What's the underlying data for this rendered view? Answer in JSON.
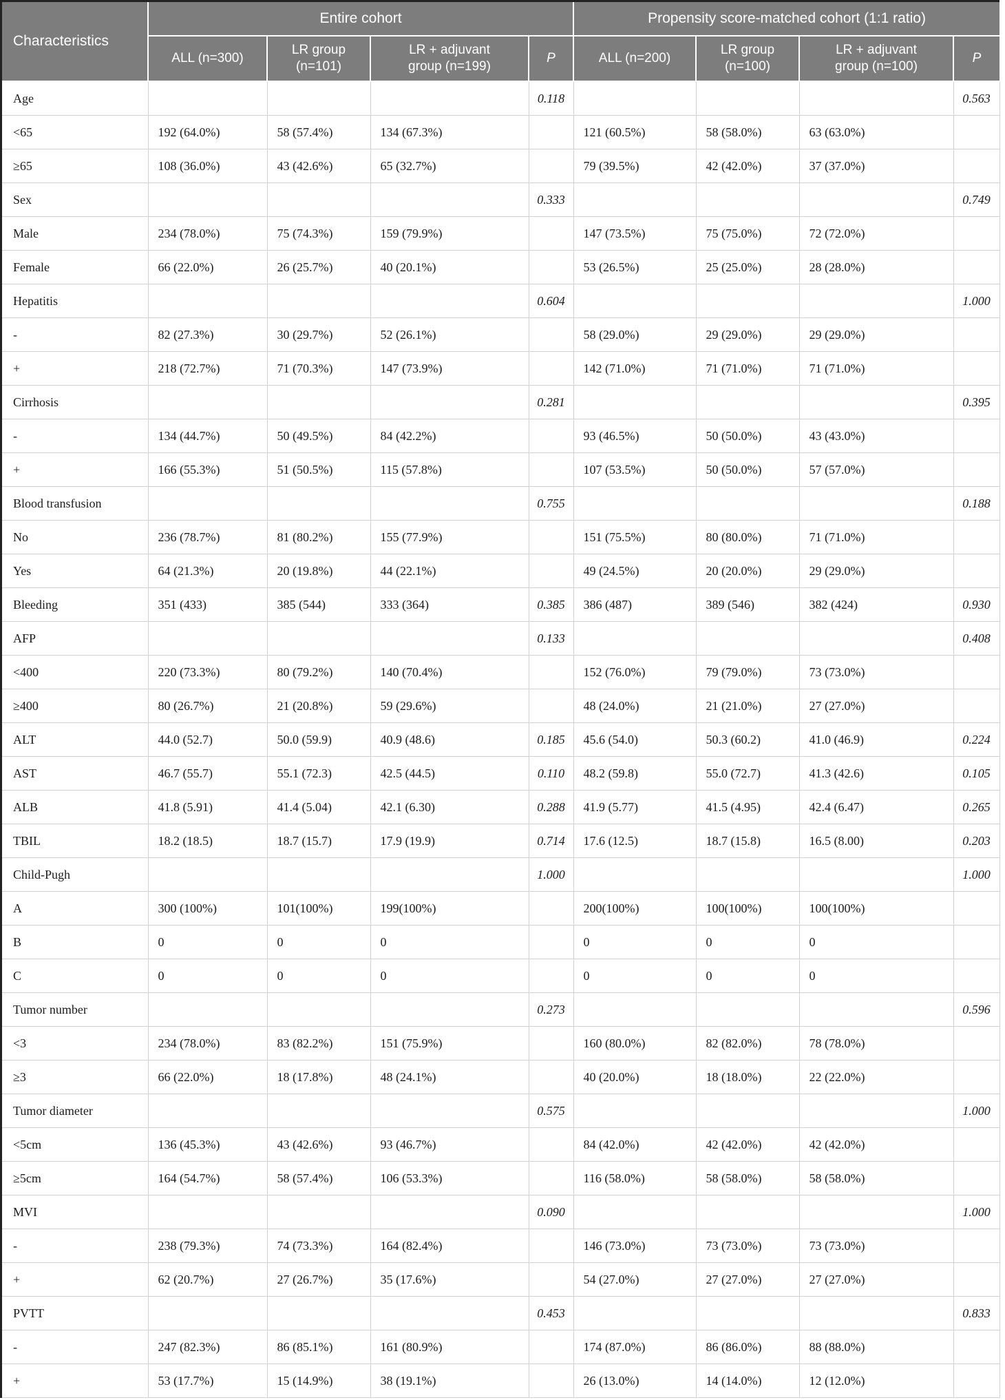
{
  "colors": {
    "header_bg": "#7d7d7d",
    "header_text": "#ffffff",
    "row_border": "#d2d2d2",
    "frame": "#222222",
    "body_text": "#1c1c1c"
  },
  "table": {
    "header": {
      "characteristics": "Characteristics",
      "groups": [
        {
          "label": "Entire cohort",
          "subcolumns": [
            "ALL (n=300)",
            "LR group\n(n=101)",
            "LR + adjuvant\ngroup (n=199)",
            "P"
          ]
        },
        {
          "label": "Propensity score-matched cohort (1:1 ratio)",
          "subcolumns": [
            "ALL (n=200)",
            "LR group\n(n=100)",
            "LR + adjuvant\ngroup (n=100)",
            "P"
          ]
        }
      ]
    },
    "rows": [
      {
        "label": "Age",
        "cells": [
          "",
          "",
          "",
          "0.118",
          "",
          "",
          "",
          "0.563"
        ]
      },
      {
        "label": "<65",
        "cells": [
          "192 (64.0%)",
          "58 (57.4%)",
          "134 (67.3%)",
          "",
          "121 (60.5%)",
          "58 (58.0%)",
          "63 (63.0%)",
          ""
        ]
      },
      {
        "label": "≥65",
        "cells": [
          "108 (36.0%)",
          "43 (42.6%)",
          "65 (32.7%)",
          "",
          "79 (39.5%)",
          "42 (42.0%)",
          "37 (37.0%)",
          ""
        ]
      },
      {
        "label": "Sex",
        "cells": [
          "",
          "",
          "",
          "0.333",
          "",
          "",
          "",
          "0.749"
        ]
      },
      {
        "label": "Male",
        "cells": [
          "234 (78.0%)",
          "75 (74.3%)",
          "159 (79.9%)",
          "",
          "147 (73.5%)",
          "75 (75.0%)",
          "72 (72.0%)",
          ""
        ]
      },
      {
        "label": "Female",
        "cells": [
          "66 (22.0%)",
          "26 (25.7%)",
          "40 (20.1%)",
          "",
          "53 (26.5%)",
          "25 (25.0%)",
          "28 (28.0%)",
          ""
        ]
      },
      {
        "label": "Hepatitis",
        "cells": [
          "",
          "",
          "",
          "0.604",
          "",
          "",
          "",
          "1.000"
        ]
      },
      {
        "label": "-",
        "cells": [
          "82 (27.3%)",
          "30 (29.7%)",
          "52 (26.1%)",
          "",
          "58 (29.0%)",
          "29 (29.0%)",
          "29 (29.0%)",
          ""
        ]
      },
      {
        "label": "+",
        "cells": [
          "218 (72.7%)",
          "71 (70.3%)",
          "147 (73.9%)",
          "",
          "142 (71.0%)",
          "71 (71.0%)",
          "71 (71.0%)",
          ""
        ]
      },
      {
        "label": "Cirrhosis",
        "cells": [
          "",
          "",
          "",
          "0.281",
          "",
          "",
          "",
          "0.395"
        ]
      },
      {
        "label": "-",
        "cells": [
          "134 (44.7%)",
          "50 (49.5%)",
          "84 (42.2%)",
          "",
          "93 (46.5%)",
          "50 (50.0%)",
          "43 (43.0%)",
          ""
        ]
      },
      {
        "label": "+",
        "cells": [
          "166 (55.3%)",
          "51 (50.5%)",
          "115 (57.8%)",
          "",
          "107 (53.5%)",
          "50 (50.0%)",
          "57 (57.0%)",
          ""
        ]
      },
      {
        "label": "Blood transfusion",
        "cells": [
          "",
          "",
          "",
          "0.755",
          "",
          "",
          "",
          "0.188"
        ]
      },
      {
        "label": "No",
        "cells": [
          "236 (78.7%)",
          "81 (80.2%)",
          "155 (77.9%)",
          "",
          "151 (75.5%)",
          "80 (80.0%)",
          "71 (71.0%)",
          ""
        ]
      },
      {
        "label": "Yes",
        "cells": [
          "64 (21.3%)",
          "20 (19.8%)",
          "44 (22.1%)",
          "",
          "49 (24.5%)",
          "20 (20.0%)",
          "29 (29.0%)",
          ""
        ]
      },
      {
        "label": "Bleeding",
        "cells": [
          "351 (433)",
          "385 (544)",
          "333 (364)",
          "0.385",
          "386 (487)",
          "389 (546)",
          "382 (424)",
          "0.930"
        ]
      },
      {
        "label": "AFP",
        "cells": [
          "",
          "",
          "",
          "0.133",
          "",
          "",
          "",
          "0.408"
        ]
      },
      {
        "label": "<400",
        "cells": [
          "220 (73.3%)",
          "80 (79.2%)",
          "140 (70.4%)",
          "",
          "152 (76.0%)",
          "79 (79.0%)",
          "73 (73.0%)",
          ""
        ]
      },
      {
        "label": "≥400",
        "cells": [
          "80 (26.7%)",
          "21 (20.8%)",
          "59 (29.6%)",
          "",
          "48 (24.0%)",
          "21 (21.0%)",
          "27 (27.0%)",
          ""
        ]
      },
      {
        "label": "ALT",
        "cells": [
          "44.0 (52.7)",
          "50.0 (59.9)",
          "40.9 (48.6)",
          "0.185",
          "45.6 (54.0)",
          "50.3 (60.2)",
          "41.0 (46.9)",
          "0.224"
        ]
      },
      {
        "label": "AST",
        "cells": [
          "46.7 (55.7)",
          "55.1 (72.3)",
          "42.5 (44.5)",
          "0.110",
          "48.2 (59.8)",
          "55.0 (72.7)",
          "41.3 (42.6)",
          "0.105"
        ]
      },
      {
        "label": "ALB",
        "cells": [
          "41.8 (5.91)",
          "41.4 (5.04)",
          "42.1 (6.30)",
          "0.288",
          "41.9 (5.77)",
          "41.5 (4.95)",
          "42.4 (6.47)",
          "0.265"
        ]
      },
      {
        "label": "TBIL",
        "cells": [
          "18.2 (18.5)",
          "18.7 (15.7)",
          "17.9 (19.9)",
          "0.714",
          "17.6 (12.5)",
          "18.7 (15.8)",
          "16.5 (8.00)",
          "0.203"
        ]
      },
      {
        "label": "Child-Pugh",
        "cells": [
          "",
          "",
          "",
          "1.000",
          "",
          "",
          "",
          "1.000"
        ]
      },
      {
        "label": "A",
        "cells": [
          "300 (100%)",
          "101(100%)",
          "199(100%)",
          "",
          "200(100%)",
          "100(100%)",
          "100(100%)",
          ""
        ]
      },
      {
        "label": "B",
        "cells": [
          "0",
          "0",
          "0",
          "",
          "0",
          "0",
          "0",
          ""
        ]
      },
      {
        "label": "C",
        "cells": [
          "0",
          "0",
          "0",
          "",
          "0",
          "0",
          "0",
          ""
        ]
      },
      {
        "label": "Tumor number",
        "cells": [
          "",
          "",
          "",
          "0.273",
          "",
          "",
          "",
          "0.596"
        ]
      },
      {
        "label": "<3",
        "cells": [
          "234 (78.0%)",
          "83 (82.2%)",
          "151 (75.9%)",
          "",
          "160 (80.0%)",
          "82 (82.0%)",
          "78 (78.0%)",
          ""
        ]
      },
      {
        "label": "≥3",
        "cells": [
          "66 (22.0%)",
          "18 (17.8%)",
          "48 (24.1%)",
          "",
          "40 (20.0%)",
          "18 (18.0%)",
          "22 (22.0%)",
          ""
        ]
      },
      {
        "label": "Tumor diameter",
        "cells": [
          "",
          "",
          "",
          "0.575",
          "",
          "",
          "",
          "1.000"
        ]
      },
      {
        "label": "<5cm",
        "cells": [
          "136 (45.3%)",
          "43 (42.6%)",
          "93 (46.7%)",
          "",
          "84 (42.0%)",
          "42 (42.0%)",
          "42 (42.0%)",
          ""
        ]
      },
      {
        "label": "≥5cm",
        "cells": [
          "164 (54.7%)",
          "58 (57.4%)",
          "106 (53.3%)",
          "",
          "116 (58.0%)",
          "58 (58.0%)",
          "58 (58.0%)",
          ""
        ]
      },
      {
        "label": "MVI",
        "cells": [
          "",
          "",
          "",
          "0.090",
          "",
          "",
          "",
          "1.000"
        ]
      },
      {
        "label": "-",
        "cells": [
          "238 (79.3%)",
          "74 (73.3%)",
          "164 (82.4%)",
          "",
          "146 (73.0%)",
          "73 (73.0%)",
          "73 (73.0%)",
          ""
        ]
      },
      {
        "label": "+",
        "cells": [
          "62 (20.7%)",
          "27 (26.7%)",
          "35 (17.6%)",
          "",
          "54 (27.0%)",
          "27 (27.0%)",
          "27 (27.0%)",
          ""
        ]
      },
      {
        "label": "PVTT",
        "cells": [
          "",
          "",
          "",
          "0.453",
          "",
          "",
          "",
          "0.833"
        ]
      },
      {
        "label": "-",
        "cells": [
          "247 (82.3%)",
          "86 (85.1%)",
          "161 (80.9%)",
          "",
          "174 (87.0%)",
          "86 (86.0%)",
          "88 (88.0%)",
          ""
        ]
      },
      {
        "label": "+",
        "cells": [
          "53 (17.7%)",
          "15 (14.9%)",
          "38 (19.1%)",
          "",
          "26 (13.0%)",
          "14 (14.0%)",
          "12 (12.0%)",
          ""
        ]
      }
    ]
  }
}
